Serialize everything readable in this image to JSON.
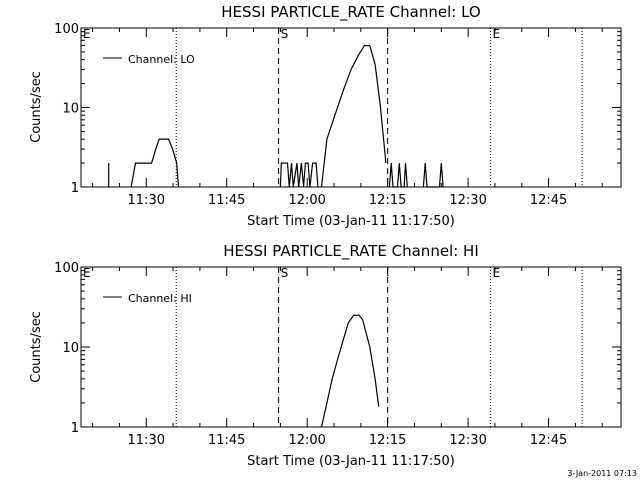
{
  "figure": {
    "timestamp": "3-Jan-2011 07:13",
    "colors": {
      "background": "#ffffff",
      "foreground": "#000000"
    }
  },
  "chart_data": [
    {
      "type": "line",
      "title": "HESSI PARTICLE_RATE Channel: LO",
      "xlabel": "Start Time (03-Jan-11 11:17:50)",
      "ylabel": "Counts/sec",
      "y_scale": "log",
      "ylim": [
        1,
        100
      ],
      "y_ticks": [
        1,
        10,
        100
      ],
      "y_tick_labels": [
        "1",
        "10",
        "100"
      ],
      "xlim": [
        "11:17:50",
        "12:58:30"
      ],
      "x_ticks": [
        "11:30",
        "11:45",
        "12:00",
        "12:15",
        "12:30",
        "12:45"
      ],
      "x_tick_labels": [
        "11:30",
        "11:45",
        "12:00",
        "12:15",
        "12:30",
        "12:45"
      ],
      "grid": false,
      "legend": {
        "position": "top-left"
      },
      "markers": [
        {
          "label": "E",
          "time": "11:17:50",
          "style": "dotted"
        },
        {
          "time": "11:35:35",
          "style": "dotted"
        },
        {
          "label": "S",
          "time": "11:54:40",
          "style": "dashed"
        },
        {
          "time": "12:15:00",
          "style": "dashed"
        },
        {
          "label": "E",
          "time": "12:34:10",
          "style": "dotted"
        },
        {
          "time": "12:51:15",
          "style": "dotted"
        }
      ],
      "series": [
        {
          "name": "Channel: LO",
          "segments": [
            [
              [
                "11:23:00",
                2
              ],
              [
                "11:23:00",
                1
              ]
            ],
            [
              [
                "11:27:10",
                1
              ],
              [
                "11:28:00",
                2
              ],
              [
                "11:31:00",
                2
              ],
              [
                "11:31:45",
                3
              ],
              [
                "11:32:25",
                4
              ],
              [
                "11:34:10",
                4
              ],
              [
                "11:34:55",
                3
              ],
              [
                "11:35:40",
                2
              ],
              [
                "11:36:00",
                1
              ]
            ],
            [
              [
                "11:55:00",
                1
              ],
              [
                "11:55:10",
                2
              ],
              [
                "11:56:20",
                2
              ],
              [
                "11:56:40",
                1
              ],
              [
                "11:57:05",
                2
              ],
              [
                "11:57:25",
                1
              ],
              [
                "11:58:05",
                2
              ],
              [
                "11:58:25",
                1
              ],
              [
                "11:58:55",
                2
              ],
              [
                "11:59:20",
                1
              ],
              [
                "11:59:40",
                2
              ],
              [
                "12:00:10",
                2
              ],
              [
                "12:00:30",
                1
              ],
              [
                "12:01:00",
                2
              ],
              [
                "12:01:40",
                2
              ],
              [
                "12:02:00",
                1
              ]
            ],
            [
              [
                "12:02:40",
                1
              ],
              [
                "12:03:40",
                4
              ],
              [
                "12:05:10",
                8
              ],
              [
                "12:06:40",
                16
              ],
              [
                "12:08:10",
                30
              ],
              [
                "12:09:30",
                45
              ],
              [
                "12:10:40",
                60
              ],
              [
                "12:11:40",
                60
              ],
              [
                "12:12:40",
                35
              ],
              [
                "12:13:40",
                10
              ],
              [
                "12:14:40",
                2
              ]
            ],
            [
              [
                "12:15:20",
                1
              ],
              [
                "12:15:40",
                2
              ],
              [
                "12:16:00",
                1
              ],
              [
                "12:16:50",
                1
              ],
              [
                "12:17:10",
                2
              ],
              [
                "12:17:30",
                1
              ],
              [
                "12:18:05",
                1
              ],
              [
                "12:18:20",
                2
              ],
              [
                "12:18:40",
                1
              ]
            ],
            [
              [
                "12:21:40",
                1
              ],
              [
                "12:22:00",
                2
              ],
              [
                "12:22:20",
                1
              ],
              [
                "12:24:40",
                1
              ],
              [
                "12:25:00",
                2
              ],
              [
                "12:25:20",
                1
              ]
            ]
          ]
        }
      ]
    },
    {
      "type": "line",
      "title": "HESSI PARTICLE_RATE Channel: HI",
      "xlabel": "Start Time (03-Jan-11 11:17:50)",
      "ylabel": "Counts/sec",
      "y_scale": "log",
      "ylim": [
        1,
        100
      ],
      "y_ticks": [
        1,
        10,
        100
      ],
      "y_tick_labels": [
        "1",
        "10",
        "100"
      ],
      "xlim": [
        "11:17:50",
        "12:58:30"
      ],
      "x_ticks": [
        "11:30",
        "11:45",
        "12:00",
        "12:15",
        "12:30",
        "12:45"
      ],
      "x_tick_labels": [
        "11:30",
        "11:45",
        "12:00",
        "12:15",
        "12:30",
        "12:45"
      ],
      "grid": false,
      "legend": {
        "position": "top-left"
      },
      "markers": [
        {
          "label": "E",
          "time": "11:17:50",
          "style": "dotted"
        },
        {
          "time": "11:35:35",
          "style": "dotted"
        },
        {
          "label": "S",
          "time": "11:54:40",
          "style": "dashed"
        },
        {
          "time": "12:15:00",
          "style": "dashed"
        },
        {
          "label": "E",
          "time": "12:34:10",
          "style": "dotted"
        },
        {
          "time": "12:51:15",
          "style": "dotted"
        }
      ],
      "series": [
        {
          "name": "Channel: HI",
          "segments": [
            [
              [
                "12:02:40",
                1
              ],
              [
                "12:03:40",
                2
              ],
              [
                "12:04:40",
                4
              ],
              [
                "12:05:40",
                7
              ],
              [
                "12:06:40",
                12
              ],
              [
                "12:07:40",
                20
              ],
              [
                "12:08:40",
                25
              ],
              [
                "12:09:40",
                25
              ],
              [
                "12:10:20",
                22
              ],
              [
                "12:11:40",
                10
              ],
              [
                "12:12:40",
                4
              ],
              [
                "12:13:20",
                1.8
              ]
            ]
          ]
        }
      ]
    }
  ]
}
